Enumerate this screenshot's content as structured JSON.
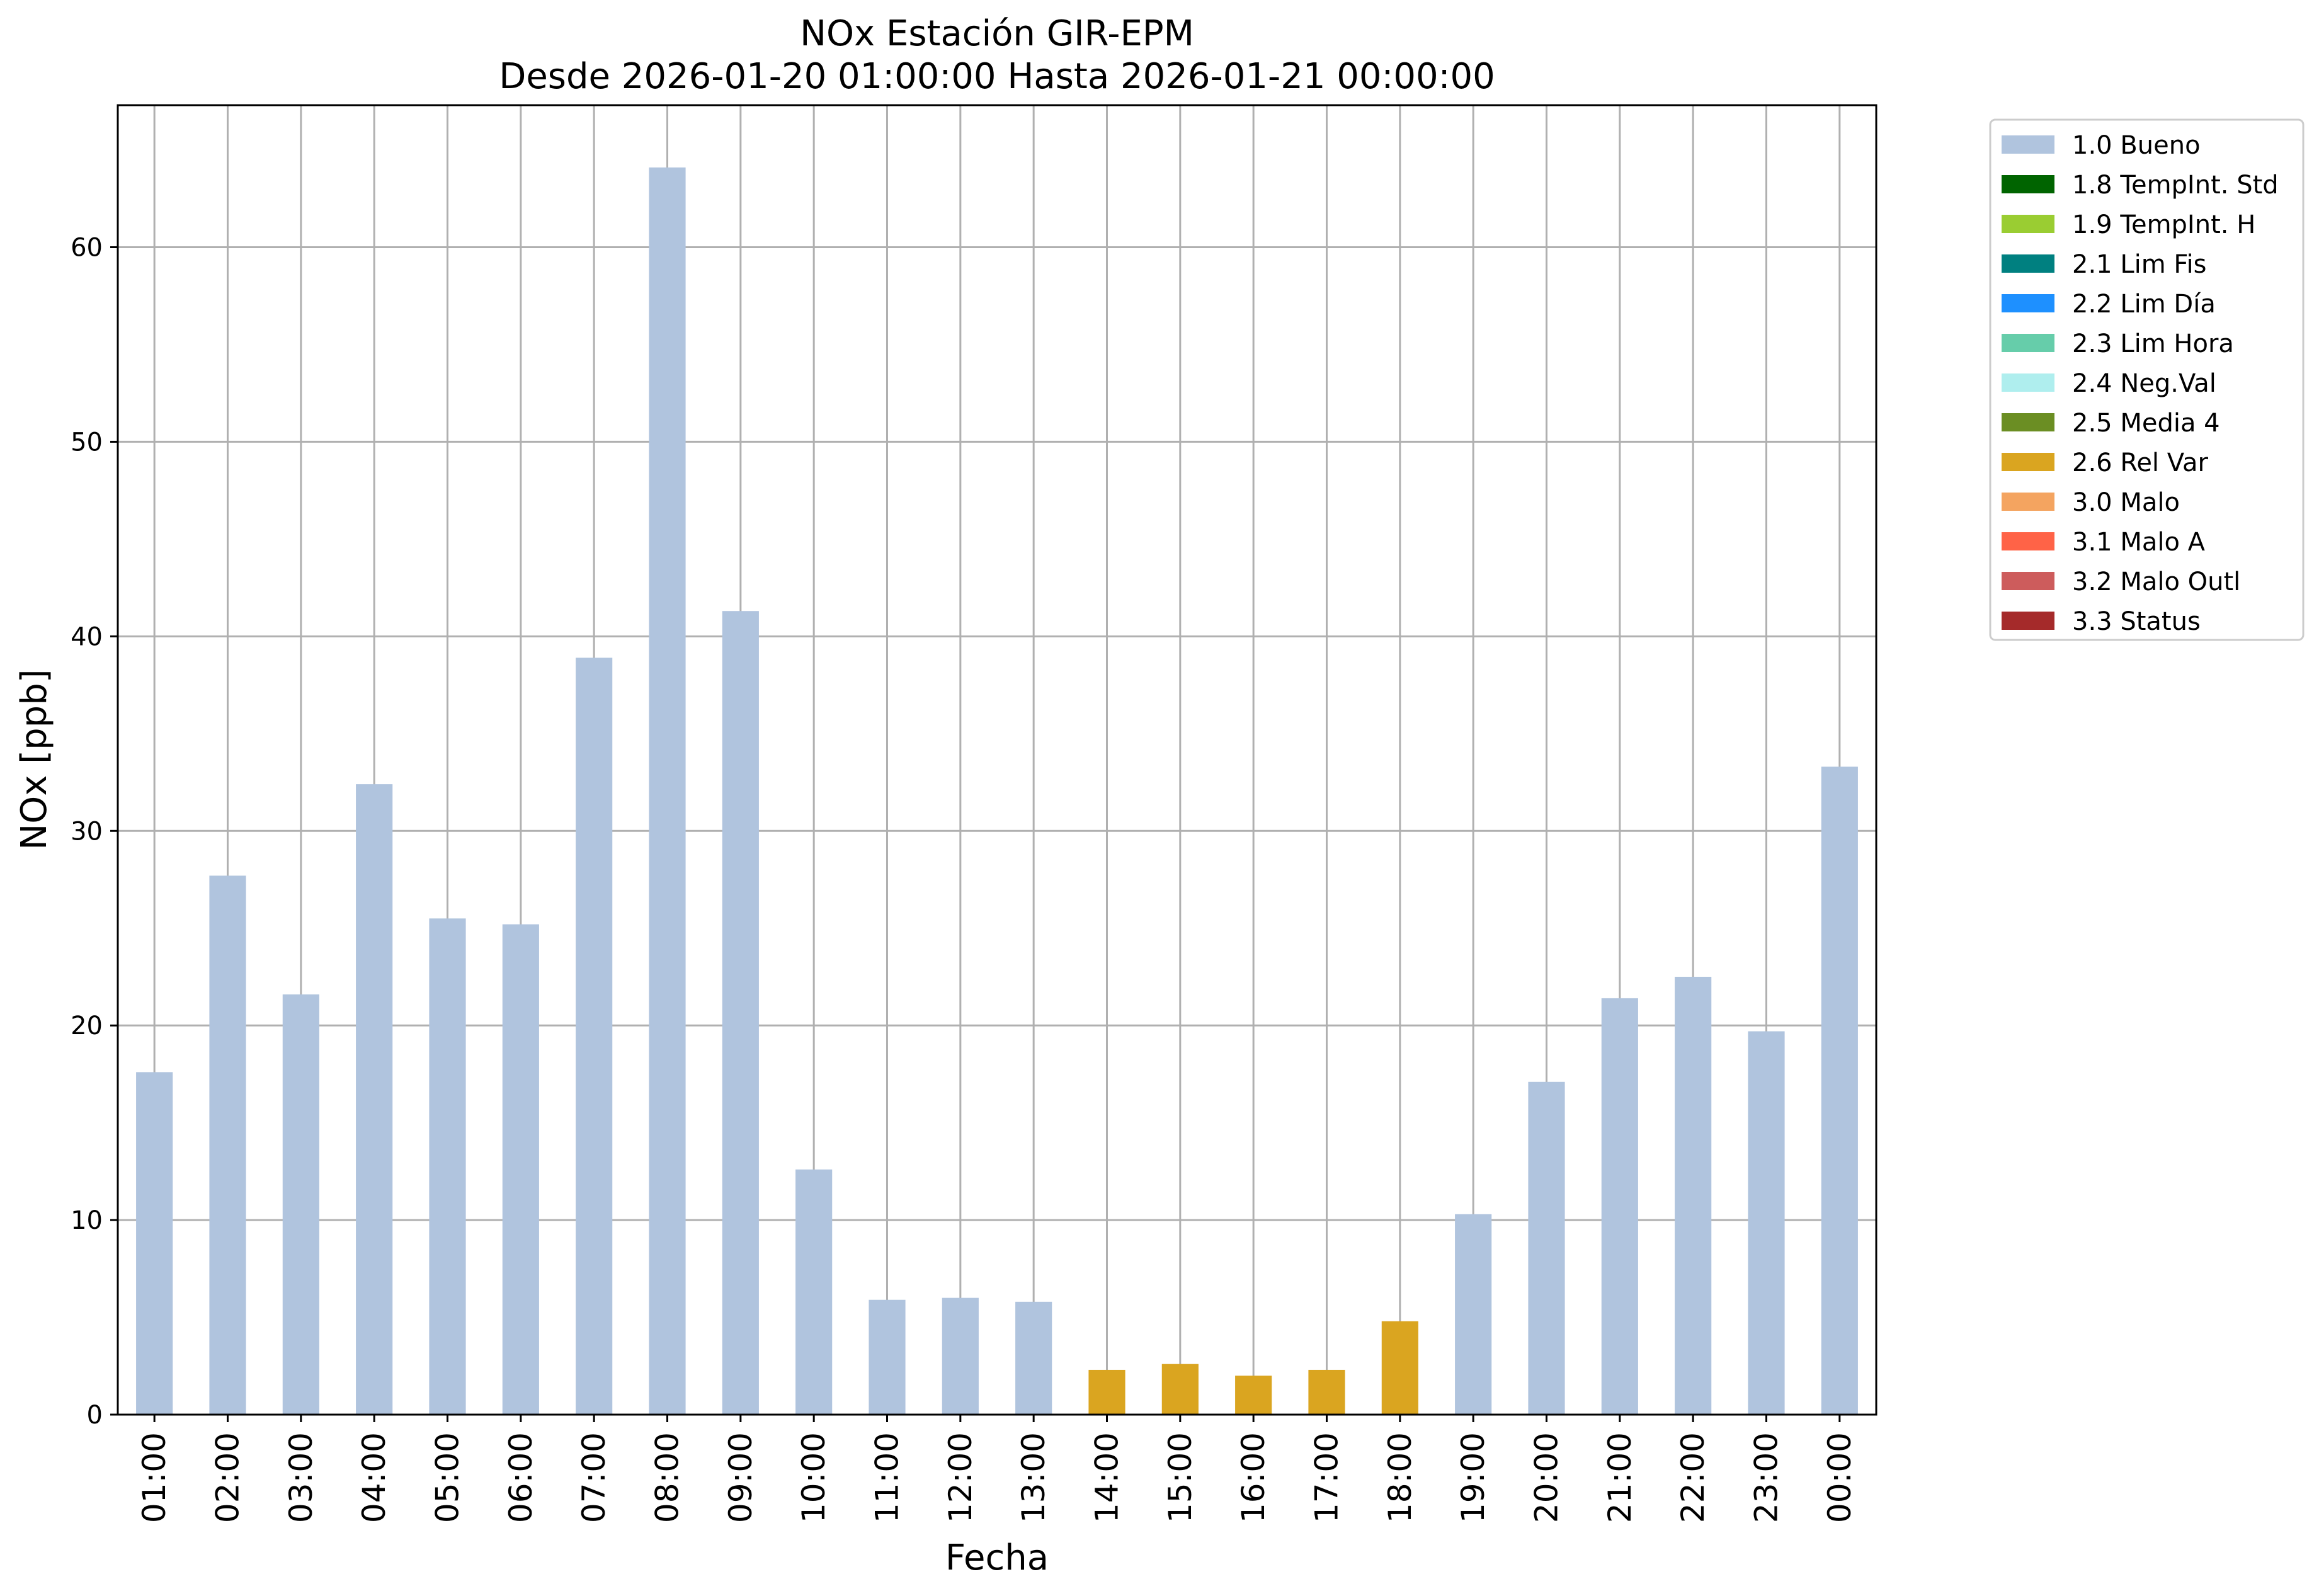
{
  "chart_data": {
    "type": "bar",
    "title": "NOx Estación GIR-EPM",
    "subtitle": "Desde 2026-01-20 01:00:00 Hasta 2026-01-21 00:00:00",
    "xlabel": "Fecha",
    "ylabel": "NOx [ppb]",
    "ylim": [
      0,
      67.3
    ],
    "yticks": [
      0,
      10,
      20,
      30,
      40,
      50,
      60
    ],
    "grid": true,
    "legend_position": "outside-top-right",
    "categories": [
      "01:00",
      "02:00",
      "03:00",
      "04:00",
      "05:00",
      "06:00",
      "07:00",
      "08:00",
      "09:00",
      "10:00",
      "11:00",
      "12:00",
      "13:00",
      "14:00",
      "15:00",
      "16:00",
      "17:00",
      "18:00",
      "19:00",
      "20:00",
      "21:00",
      "22:00",
      "23:00",
      "00:00"
    ],
    "values": [
      17.6,
      27.7,
      21.6,
      32.4,
      25.5,
      25.2,
      38.9,
      64.1,
      41.3,
      12.6,
      5.9,
      6.0,
      5.8,
      2.3,
      2.6,
      2.0,
      2.3,
      4.8,
      10.3,
      17.1,
      21.4,
      22.5,
      19.7,
      33.3
    ],
    "flags": [
      "1.0 Bueno",
      "1.0 Bueno",
      "1.0 Bueno",
      "1.0 Bueno",
      "1.0 Bueno",
      "1.0 Bueno",
      "1.0 Bueno",
      "1.0 Bueno",
      "1.0 Bueno",
      "1.0 Bueno",
      "1.0 Bueno",
      "1.0 Bueno",
      "1.0 Bueno",
      "2.6 Rel Var",
      "2.6 Rel Var",
      "2.6 Rel Var",
      "2.6 Rel Var",
      "2.6 Rel Var",
      "1.0 Bueno",
      "1.0 Bueno",
      "1.0 Bueno",
      "1.0 Bueno",
      "1.0 Bueno",
      "1.0 Bueno"
    ],
    "legend": [
      {
        "label": "1.0 Bueno",
        "color": "#b0c4de"
      },
      {
        "label": "1.8 TempInt. Std",
        "color": "#006400"
      },
      {
        "label": "1.9 TempInt. H",
        "color": "#9acd32"
      },
      {
        "label": "2.1 Lim Fis",
        "color": "#008080"
      },
      {
        "label": "2.2 Lim Día",
        "color": "#1e90ff"
      },
      {
        "label": "2.3 Lim Hora",
        "color": "#66cdaa"
      },
      {
        "label": "2.4 Neg.Val",
        "color": "#afeeee"
      },
      {
        "label": "2.5 Media 4",
        "color": "#6b8e23"
      },
      {
        "label": "2.6 Rel Var",
        "color": "#daa520"
      },
      {
        "label": "3.0 Malo",
        "color": "#f4a460"
      },
      {
        "label": "3.1 Malo A",
        "color": "#ff6347"
      },
      {
        "label": "3.2 Malo Outl",
        "color": "#cd5c5c"
      },
      {
        "label": "3.3 Status",
        "color": "#a52a2a"
      }
    ]
  }
}
